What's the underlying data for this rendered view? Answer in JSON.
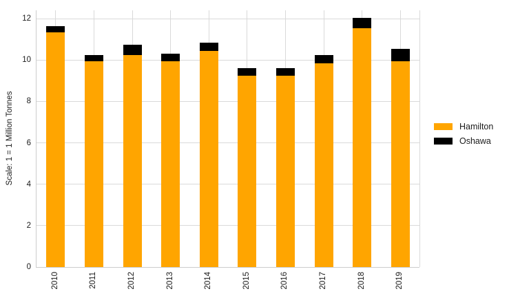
{
  "chart_data": {
    "type": "bar",
    "stacked": true,
    "title": "",
    "xlabel": "",
    "ylabel": "Scale: 1 = 1 Million Tonnes",
    "categories": [
      "2010",
      "2011",
      "2012",
      "2013",
      "2014",
      "2015",
      "2016",
      "2017",
      "2018",
      "2019"
    ],
    "series": [
      {
        "name": "Hamilton",
        "color": "#FFA500",
        "values": [
          11.35,
          9.95,
          10.25,
          9.95,
          10.45,
          9.25,
          9.25,
          9.85,
          11.55,
          9.95
        ]
      },
      {
        "name": "Oshawa",
        "color": "#000000",
        "values": [
          0.3,
          0.3,
          0.5,
          0.35,
          0.4,
          0.35,
          0.35,
          0.4,
          0.5,
          0.6
        ]
      }
    ],
    "totals": [
      11.65,
      10.25,
      10.75,
      10.3,
      10.85,
      9.6,
      9.6,
      10.25,
      12.05,
      10.55
    ],
    "yticks": [
      0,
      2,
      4,
      6,
      8,
      10,
      12
    ],
    "ylim": [
      0,
      12.4
    ],
    "grid": true,
    "legend_position": "right",
    "x_tick_rotation_deg": 90,
    "colors": {
      "background": "#ffffff",
      "gridline": "#d9d9d9",
      "spine": "#cccccc",
      "text": "#1a1a1a"
    }
  }
}
